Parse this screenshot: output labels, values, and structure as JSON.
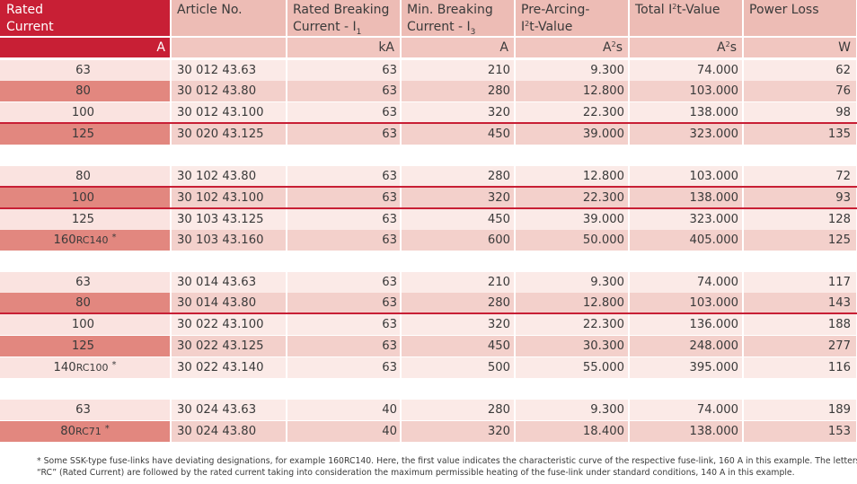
{
  "header": {
    "rated_current": "Rated Current",
    "article_no": "Article No.",
    "rated_breaking_1": "Rated Breaking",
    "rated_breaking_2": "Current - I",
    "rated_breaking_sub": "1",
    "min_breaking_1": "Min. Breaking",
    "min_breaking_2": "Current - I",
    "min_breaking_sub": "3",
    "pre_arcing_1": "Pre-Arcing-",
    "pre_arcing_2_a": "I",
    "pre_arcing_2_sup": "2",
    "pre_arcing_2_b": "t-Value",
    "total_a": "Total I",
    "total_sup": "2",
    "total_b": "t-Value",
    "power_loss": "Power Loss"
  },
  "units": {
    "rated_current": "A",
    "rated_breaking": "kA",
    "min_breaking": "A",
    "pre_arcing_a": "A",
    "pre_arcing_sup": "2",
    "pre_arcing_b": "s",
    "total_a": "A",
    "total_sup": "2",
    "total_b": "s",
    "power_loss": "W"
  },
  "rows": [
    {
      "current": "63",
      "rc": "",
      "ast": "",
      "article": "30 012 43.63",
      "rated": "63",
      "min": "210",
      "pre": "9.300",
      "total": "74.000",
      "loss": "62"
    },
    {
      "current": "80",
      "rc": "",
      "ast": "",
      "article": "30 012 43.80",
      "rated": "63",
      "min": "280",
      "pre": "12.800",
      "total": "103.000",
      "loss": "76"
    },
    {
      "current": "100",
      "rc": "",
      "ast": "",
      "article": "30 012 43.100",
      "rated": "63",
      "min": "320",
      "pre": "22.300",
      "total": "138.000",
      "loss": "98"
    },
    {
      "current": "125",
      "rc": "",
      "ast": "",
      "article": "30 020 43.125",
      "rated": "63",
      "min": "450",
      "pre": "39.000",
      "total": "323.000",
      "loss": "135"
    },
    {
      "current": "80",
      "rc": "",
      "ast": "",
      "article": "30 102 43.80",
      "rated": "63",
      "min": "280",
      "pre": "12.800",
      "total": "103.000",
      "loss": "72"
    },
    {
      "current": "100",
      "rc": "",
      "ast": "",
      "article": "30 102 43.100",
      "rated": "63",
      "min": "320",
      "pre": "22.300",
      "total": "138.000",
      "loss": "93"
    },
    {
      "current": "125",
      "rc": "",
      "ast": "",
      "article": "30 103 43.125",
      "rated": "63",
      "min": "450",
      "pre": "39.000",
      "total": "323.000",
      "loss": "128"
    },
    {
      "current": "160",
      "rc": "RC140",
      "ast": "*",
      "article": "30 103 43.160",
      "rated": "63",
      "min": "600",
      "pre": "50.000",
      "total": "405.000",
      "loss": "125"
    },
    {
      "current": "63",
      "rc": "",
      "ast": "",
      "article": "30 014 43.63",
      "rated": "63",
      "min": "210",
      "pre": "9.300",
      "total": "74.000",
      "loss": "117"
    },
    {
      "current": "80",
      "rc": "",
      "ast": "",
      "article": "30 014 43.80",
      "rated": "63",
      "min": "280",
      "pre": "12.800",
      "total": "103.000",
      "loss": "143"
    },
    {
      "current": "100",
      "rc": "",
      "ast": "",
      "article": "30 022 43.100",
      "rated": "63",
      "min": "320",
      "pre": "22.300",
      "total": "136.000",
      "loss": "188"
    },
    {
      "current": "125",
      "rc": "",
      "ast": "",
      "article": "30 022 43.125",
      "rated": "63",
      "min": "450",
      "pre": "30.300",
      "total": "248.000",
      "loss": "277"
    },
    {
      "current": "140",
      "rc": "RC100",
      "ast": "*",
      "article": "30 022 43.140",
      "rated": "63",
      "min": "500",
      "pre": "55.000",
      "total": "395.000",
      "loss": "116"
    },
    {
      "current": "63",
      "rc": "",
      "ast": "",
      "article": "30 024 43.63",
      "rated": "40",
      "min": "280",
      "pre": "9.300",
      "total": "74.000",
      "loss": "189"
    },
    {
      "current": "80",
      "rc": "RC71",
      "ast": "*",
      "article": "30 024 43.80",
      "rated": "40",
      "min": "320",
      "pre": "18.400",
      "total": "138.000",
      "loss": "153"
    }
  ],
  "footnote": {
    "line1": "* Some SSK-type fuse-links have deviating designations, for example 160RC140. Here, the first value indicates the characteristic curve of the respective fuse-link, 160 A in this example. The letters",
    "line2": "“RC” (Rated Current) are followed by the rated current taking into consideration the maximum permissible heating of the fuse-link under standard conditions, 140 A in this example."
  },
  "colors": {
    "brand_red": "#c81f35",
    "header_pink": "#edbcb5",
    "dark_row_first": "#e2877f",
    "dark_row": "#f3d0cb",
    "light_row": "#fbeae7"
  }
}
